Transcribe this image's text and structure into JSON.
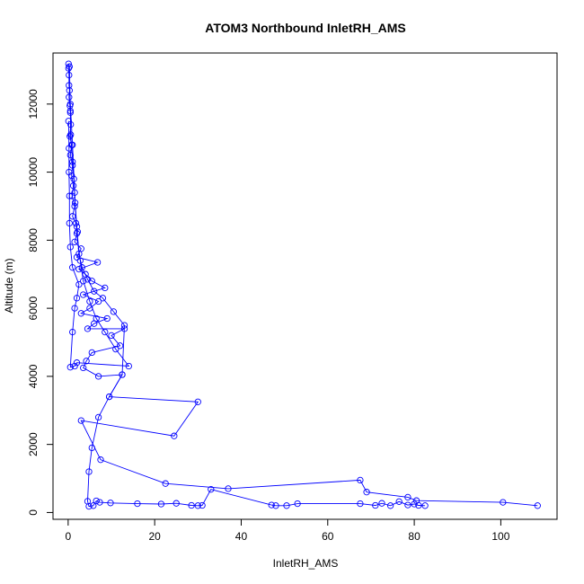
{
  "chart_data": {
    "type": "scatter",
    "title": "ATOM3 Northbound InletRH_AMS",
    "xlabel": "InletRH_AMS",
    "ylabel": "Altitude (m)",
    "xlim": [
      -3.5,
      113
    ],
    "ylim": [
      -200,
      13500
    ],
    "x_ticks": [
      0,
      20,
      40,
      60,
      80,
      100
    ],
    "y_ticks": [
      0,
      2000,
      4000,
      6000,
      8000,
      10000,
      12000
    ],
    "grid": false,
    "legend": "none",
    "point_style": "open-circle",
    "line_style": "connected",
    "color": "#0000ff",
    "series": [
      {
        "points": [
          [
            0.1,
            13180
          ],
          [
            0.1,
            13050
          ],
          [
            0.2,
            12850
          ],
          [
            0.2,
            12550
          ],
          [
            0.3,
            12400
          ],
          [
            0.2,
            12200
          ],
          [
            0.4,
            11950
          ],
          [
            0.5,
            11750
          ],
          [
            0.6,
            11400
          ],
          [
            0.4,
            11050
          ],
          [
            0.8,
            10800
          ],
          [
            0.5,
            10500
          ],
          [
            1.0,
            10200
          ],
          [
            0.8,
            9900
          ],
          [
            1.2,
            9600
          ],
          [
            0.9,
            9300
          ],
          [
            1.5,
            9000
          ],
          [
            1.0,
            8700
          ],
          [
            1.8,
            8500
          ],
          [
            2.2,
            8250
          ],
          [
            1.5,
            7950
          ],
          [
            3.0,
            7750
          ],
          [
            2.0,
            7500
          ],
          [
            6.8,
            7350
          ],
          [
            2.5,
            7150
          ],
          [
            4.0,
            7000
          ],
          [
            5.5,
            6800
          ],
          [
            8.5,
            6600
          ],
          [
            3.5,
            6400
          ],
          [
            7.0,
            6200
          ],
          [
            5.0,
            6000
          ],
          [
            3.0,
            5850
          ],
          [
            9.0,
            5700
          ],
          [
            6.0,
            5550
          ],
          [
            4.5,
            5400
          ],
          [
            13.0,
            5400
          ],
          [
            10.0,
            5200
          ],
          [
            12.0,
            4900
          ],
          [
            5.5,
            4700
          ],
          [
            4.2,
            4450
          ],
          [
            3.5,
            4250
          ],
          [
            7.0,
            4000
          ],
          [
            12.5,
            4050
          ],
          [
            9.5,
            3400
          ],
          [
            30.0,
            3250
          ],
          [
            24.5,
            2250
          ],
          [
            3.0,
            2700
          ],
          [
            7.5,
            1550
          ],
          [
            22.5,
            850
          ],
          [
            37.0,
            700
          ],
          [
            67.5,
            950
          ],
          [
            69.0,
            600
          ],
          [
            78.5,
            450
          ],
          [
            80.5,
            350
          ],
          [
            100.5,
            300
          ],
          [
            108.5,
            200
          ]
        ]
      },
      {
        "points": [
          [
            0.3,
            13100
          ],
          [
            0.5,
            11800
          ],
          [
            0.6,
            11100
          ],
          [
            1.0,
            10300
          ],
          [
            1.3,
            9800
          ],
          [
            1.6,
            9100
          ],
          [
            2.0,
            8400
          ],
          [
            2.5,
            7600
          ],
          [
            3.2,
            7200
          ],
          [
            4.5,
            6850
          ],
          [
            6.0,
            6500
          ],
          [
            8.0,
            6300
          ],
          [
            10.5,
            5900
          ],
          [
            13.0,
            5500
          ],
          [
            12.5,
            4050
          ],
          [
            9.5,
            3400
          ],
          [
            7.0,
            2800
          ],
          [
            5.5,
            1900
          ],
          [
            4.8,
            1200
          ],
          [
            4.5,
            330
          ],
          [
            4.8,
            180
          ],
          [
            5.8,
            200
          ],
          [
            6.5,
            340
          ],
          [
            7.3,
            300
          ],
          [
            9.8,
            280
          ],
          [
            16.0,
            260
          ],
          [
            21.5,
            250
          ],
          [
            25.0,
            270
          ],
          [
            28.5,
            210
          ],
          [
            30.0,
            200
          ],
          [
            31.0,
            210
          ],
          [
            33.0,
            680
          ],
          [
            47.0,
            220
          ],
          [
            48.0,
            200
          ],
          [
            50.5,
            200
          ],
          [
            53.0,
            260
          ],
          [
            67.5,
            260
          ],
          [
            71.0,
            210
          ],
          [
            72.5,
            270
          ],
          [
            74.5,
            200
          ],
          [
            76.5,
            320
          ],
          [
            78.5,
            220
          ],
          [
            80.0,
            250
          ],
          [
            81.0,
            210
          ],
          [
            82.5,
            200
          ]
        ]
      },
      {
        "points": [
          [
            0.5,
            12000
          ],
          [
            1.0,
            10800
          ],
          [
            1.5,
            9400
          ],
          [
            2.0,
            8200
          ],
          [
            2.8,
            7400
          ],
          [
            3.5,
            6800
          ],
          [
            5.0,
            6200
          ],
          [
            6.5,
            5700
          ],
          [
            8.5,
            5300
          ],
          [
            11.0,
            4800
          ],
          [
            14.0,
            4300
          ],
          [
            2.0,
            4400
          ],
          [
            1.5,
            4300
          ],
          [
            0.5,
            4270
          ],
          [
            1.0,
            5300
          ],
          [
            1.5,
            6000
          ],
          [
            2.0,
            6300
          ],
          [
            2.5,
            6700
          ],
          [
            1.0,
            7200
          ],
          [
            0.5,
            7800
          ],
          [
            0.3,
            8500
          ],
          [
            0.3,
            9300
          ],
          [
            0.2,
            10000
          ],
          [
            0.2,
            10700
          ],
          [
            0.1,
            11500
          ]
        ]
      }
    ]
  }
}
